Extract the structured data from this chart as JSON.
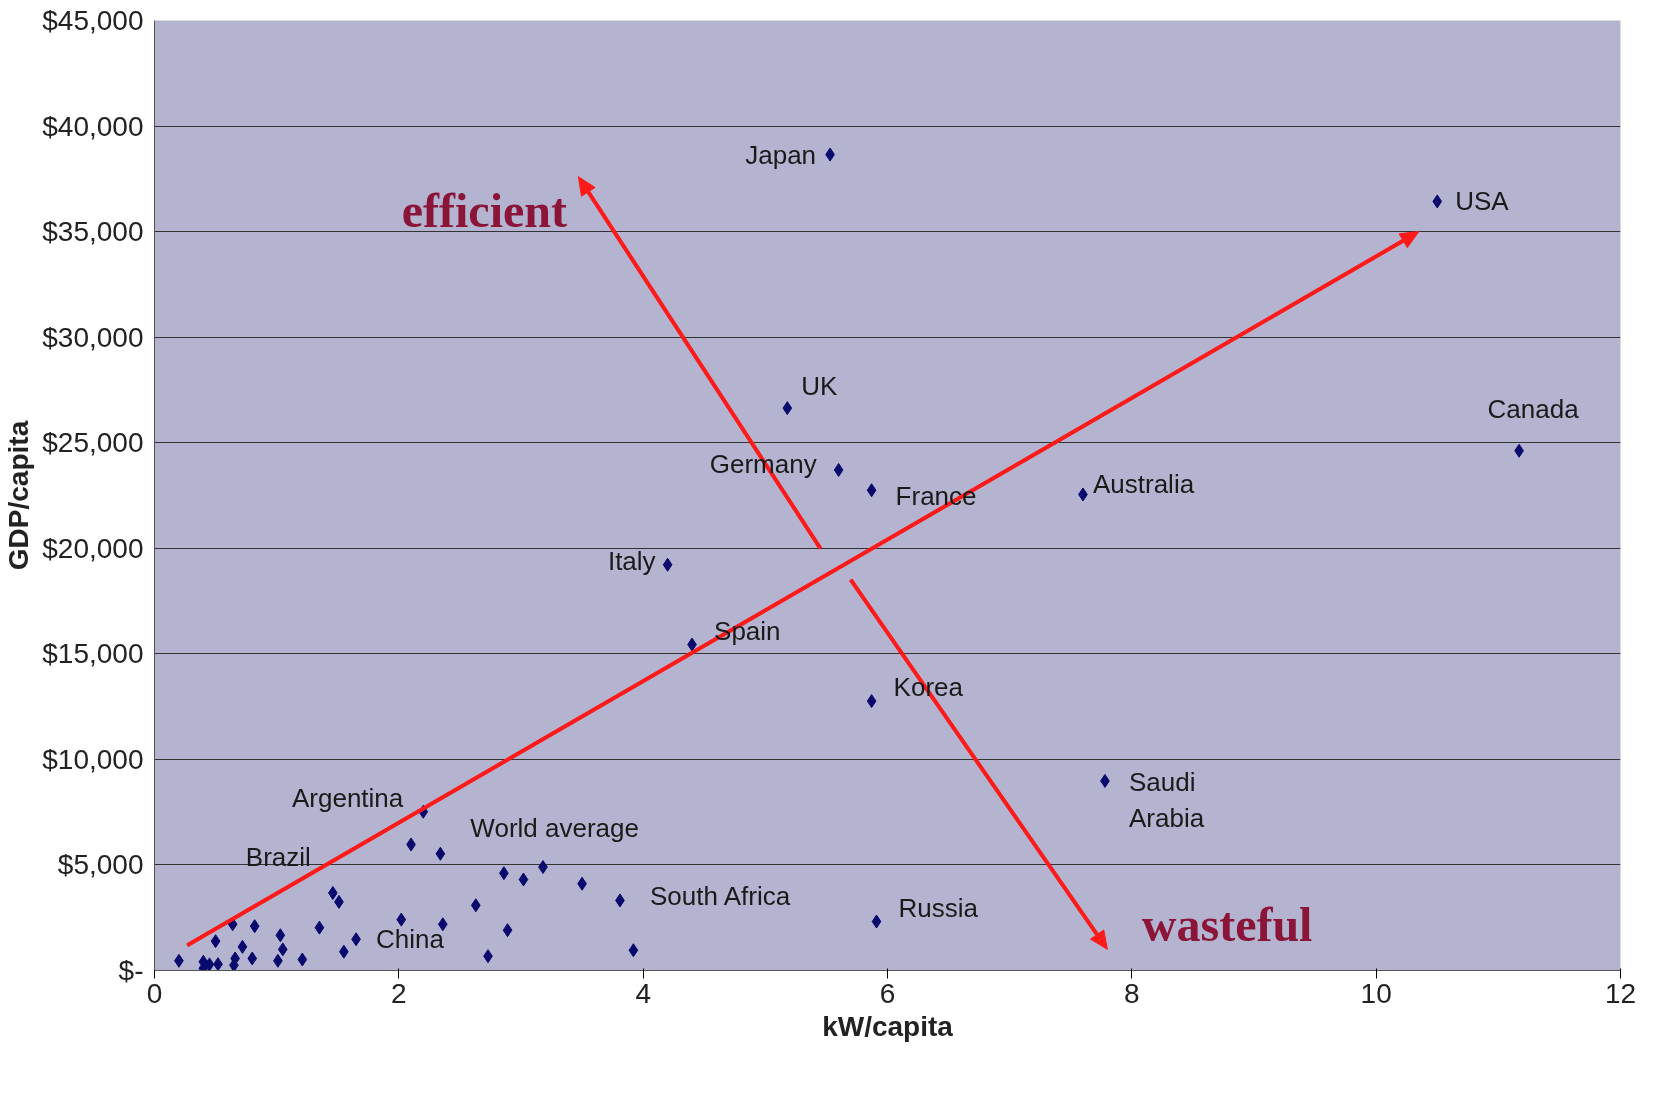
{
  "chart_data": {
    "type": "scatter",
    "xlabel": "kW/capita",
    "ylabel": "GDP/capita",
    "x": [
      5.53,
      10.5,
      5.18,
      11.17,
      5.6,
      5.87,
      7.6,
      4.2,
      4.4,
      5.87,
      7.78,
      2.2,
      2.34,
      1.46,
      1.51,
      3.81,
      5.91,
      1.65,
      2.1,
      2.86,
      3.02,
      3.18,
      3.5,
      2.63,
      2.89,
      2.73,
      3.92,
      2.36,
      2.02,
      1.55,
      1.35,
      1.21,
      1.03,
      1.05,
      1.01,
      0.82,
      0.8,
      0.64,
      0.72,
      0.66,
      0.65,
      0.5,
      0.52,
      0.4,
      0.4,
      0.45,
      0.2
    ],
    "series": [
      {
        "color": "#0a0a6e",
        "values": [
          38650,
          36430,
          26640,
          24620,
          23710,
          22750,
          22550,
          19220,
          15440,
          12760,
          8980,
          7520,
          5530,
          3670,
          3250,
          3320,
          2320,
          1480,
          5970,
          4610,
          4310,
          4900,
          4110,
          3090,
          1910,
          680,
          960,
          2190,
          2410,
          890,
          2030,
          520,
          1670,
          1000,
          460,
          2100,
          570,
          2190,
          1120,
          570,
          250,
          1390,
          300,
          410,
          100,
          290,
          460
        ]
      }
    ],
    "marker": "diamond",
    "grid": "y",
    "xlim": [
      0,
      12
    ],
    "xticks": [
      0,
      2,
      4,
      6,
      8,
      10,
      12
    ],
    "ylim": [
      0,
      45000
    ],
    "yticks": [
      {
        "value": 0,
        "label": "$-"
      },
      {
        "value": 5000,
        "label": "$5,000"
      },
      {
        "value": 10000,
        "label": "$10,000"
      },
      {
        "value": 15000,
        "label": "$15,000"
      },
      {
        "value": 20000,
        "label": "$20,000"
      },
      {
        "value": 25000,
        "label": "$25,000"
      },
      {
        "value": 30000,
        "label": "$30,000"
      },
      {
        "value": 35000,
        "label": "$35,000"
      },
      {
        "value": 40000,
        "label": "$40,000"
      },
      {
        "value": 45000,
        "label": "$45,000"
      }
    ],
    "annotations": [
      {
        "text": "Japan",
        "x": 5.53,
        "y": 38650
      },
      {
        "text": "USA",
        "x": 10.5,
        "y": 36430
      },
      {
        "text": "UK",
        "x": 5.18,
        "y": 26640
      },
      {
        "text": "Canada",
        "x": 11.17,
        "y": 24620
      },
      {
        "text": "Germany",
        "x": 5.6,
        "y": 23710
      },
      {
        "text": "France",
        "x": 5.87,
        "y": 22750
      },
      {
        "text": "Australia",
        "x": 7.6,
        "y": 22550
      },
      {
        "text": "Italy",
        "x": 4.2,
        "y": 19220
      },
      {
        "text": "Spain",
        "x": 4.4,
        "y": 15440
      },
      {
        "text": "Korea",
        "x": 5.87,
        "y": 12760
      },
      {
        "text": "Saudi\nArabia",
        "x": 7.78,
        "y": 8980
      },
      {
        "text": "Argentina",
        "x": 2.2,
        "y": 7520
      },
      {
        "text": "World average",
        "x": 2.34,
        "y": 5530
      },
      {
        "text": "Brazil",
        "x": 1.46,
        "y": 3670
      },
      {
        "text": "South Africa",
        "x": 3.81,
        "y": 3320
      },
      {
        "text": "Russia",
        "x": 5.91,
        "y": 2320
      },
      {
        "text": "China",
        "x": 1.65,
        "y": 1480
      },
      "efficient",
      "wasteful"
    ]
  }
}
